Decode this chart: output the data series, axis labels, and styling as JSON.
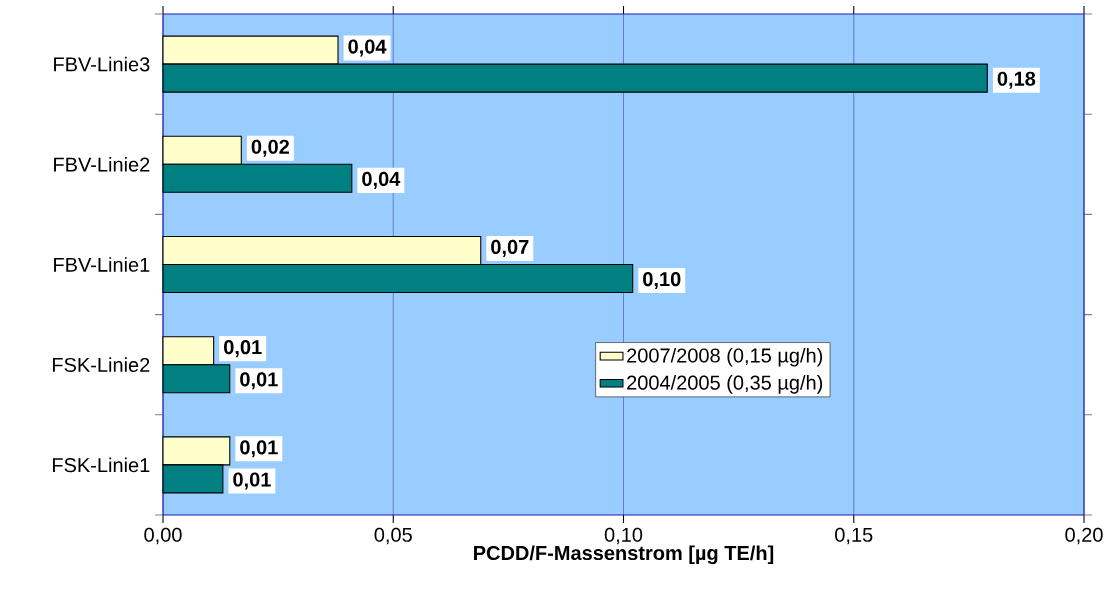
{
  "chart_data": {
    "type": "bar",
    "orientation": "horizontal",
    "xlabel": "PCDD/F-Massenstrom [µg TE/h]",
    "categories": [
      "FBV-Linie3",
      "FBV-Linie2",
      "FBV-Linie1",
      "FSK-Linie2",
      "FSK-Linie1"
    ],
    "series": [
      {
        "name": "2007/2008 (0,15 µg/h)",
        "color": "#ffffcc",
        "values": [
          0.038,
          0.017,
          0.069,
          0.011,
          0.0145
        ],
        "value_labels": [
          "0,04",
          "0,02",
          "0,07",
          "0,01",
          "0,01"
        ]
      },
      {
        "name": "2004/2005 (0,35 µg/h)",
        "color": "#008080",
        "values": [
          0.179,
          0.041,
          0.102,
          0.0145,
          0.013
        ],
        "value_labels": [
          "0,18",
          "0,04",
          "0,10",
          "0,01",
          "0,01"
        ]
      }
    ],
    "xlim": [
      0,
      0.2
    ],
    "xticks": [
      {
        "value": 0,
        "label": "0,00"
      },
      {
        "value": 0.05,
        "label": "0,05"
      },
      {
        "value": 0.1,
        "label": "0,10"
      },
      {
        "value": 0.15,
        "label": "0,15"
      },
      {
        "value": 0.2,
        "label": "0,20"
      }
    ],
    "grid": "x",
    "legend": "center"
  }
}
